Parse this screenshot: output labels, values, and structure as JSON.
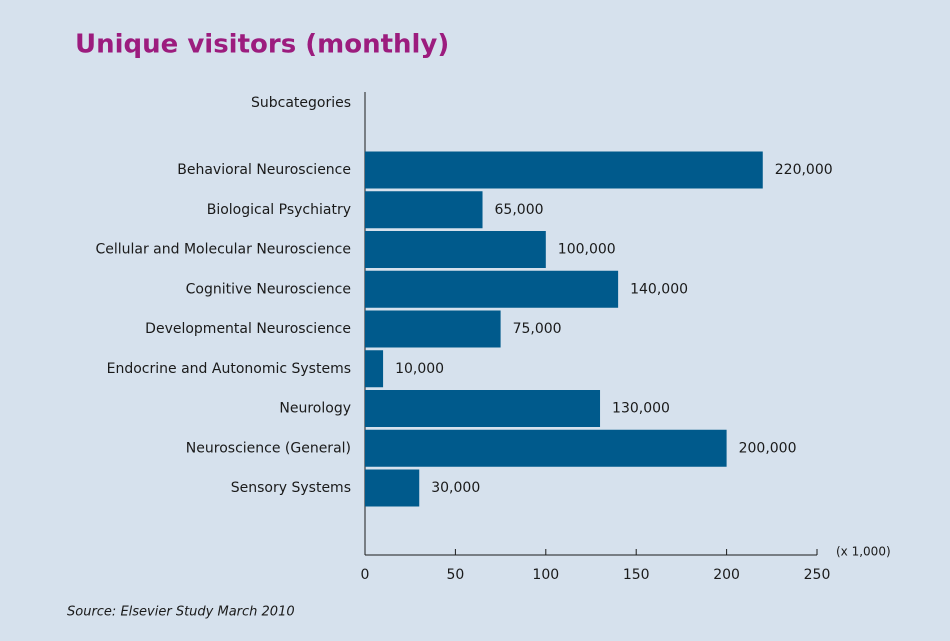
{
  "chart_data": {
    "type": "hbar",
    "title": "Unique visitors (monthly)",
    "y_axis_label": "Subcategories",
    "x_axis_unit": "(x 1,000)",
    "source": "Source: Elsevier Study March 2010",
    "categories": [
      "Behavioral Neuroscience",
      "Biological Psychiatry",
      "Cellular and Molecular Neuroscience",
      "Cognitive Neuroscience",
      "Developmental Neuroscience",
      "Endocrine and Autonomic Systems",
      "Neurology",
      "Neuroscience (General)",
      "Sensory Systems"
    ],
    "values": [
      220,
      65,
      100,
      140,
      75,
      10,
      130,
      200,
      30
    ],
    "value_labels": [
      "220,000",
      "65,000",
      "100,000",
      "140,000",
      "75,000",
      "10,000",
      "130,000",
      "200,000",
      "30,000"
    ],
    "color": "#005a8c",
    "xlim": [
      0,
      250
    ],
    "xticks": [
      0,
      50,
      100,
      150,
      200,
      250
    ],
    "grid": false
  }
}
